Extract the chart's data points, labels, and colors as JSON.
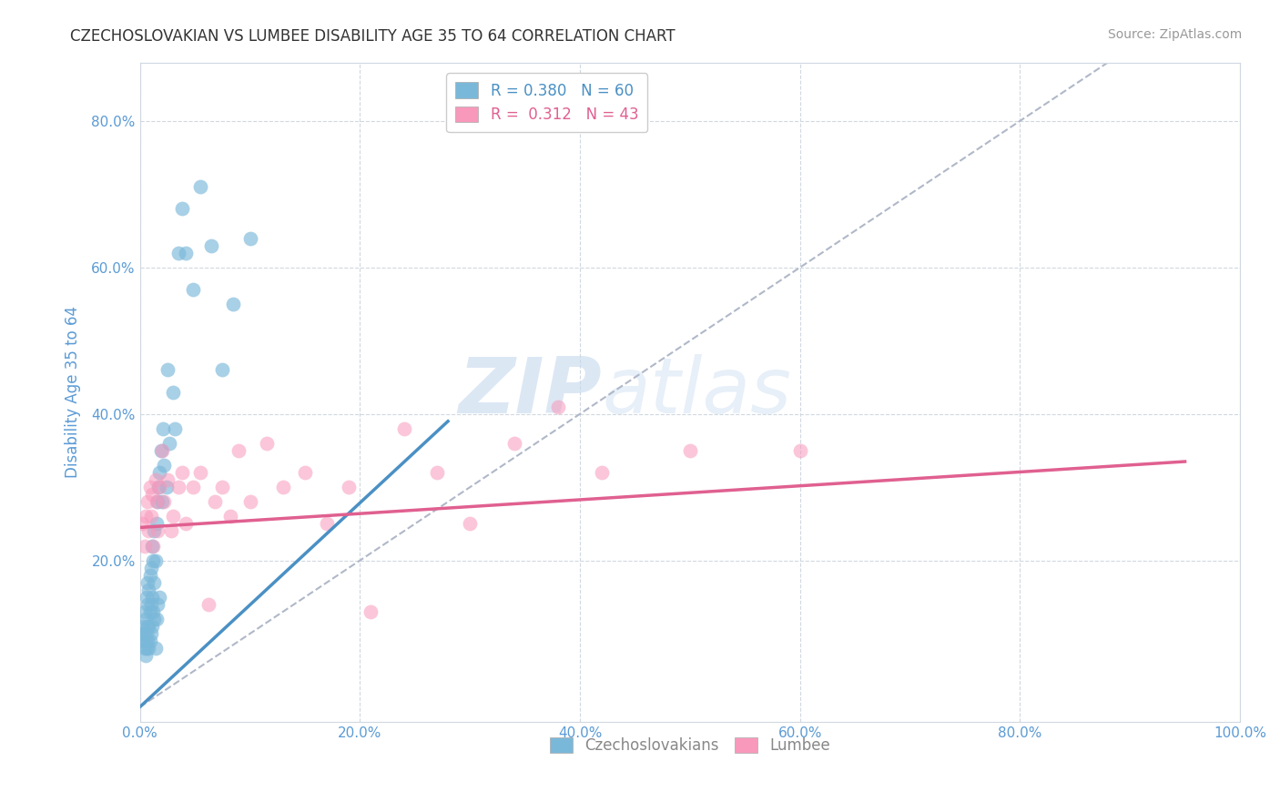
{
  "title": "CZECHOSLOVAKIAN VS LUMBEE DISABILITY AGE 35 TO 64 CORRELATION CHART",
  "source": "Source: ZipAtlas.com",
  "ylabel": "Disability Age 35 to 64",
  "xlabel": "",
  "xlim": [
    0.0,
    1.0
  ],
  "ylim": [
    -0.02,
    0.88
  ],
  "xticks": [
    0.0,
    0.2,
    0.4,
    0.6,
    0.8,
    1.0
  ],
  "yticks": [
    0.2,
    0.4,
    0.6,
    0.8
  ],
  "xtick_labels": [
    "0.0%",
    "20.0%",
    "40.0%",
    "60.0%",
    "80.0%",
    "100.0%"
  ],
  "ytick_labels": [
    "20.0%",
    "40.0%",
    "60.0%",
    "80.0%"
  ],
  "blue_R": 0.38,
  "blue_N": 60,
  "pink_R": 0.312,
  "pink_N": 43,
  "blue_color": "#7ab8d9",
  "pink_color": "#f898bb",
  "blue_line_color": "#4a90c4",
  "pink_line_color": "#e06090",
  "background_color": "#ffffff",
  "grid_color": "#d0d8e0",
  "title_color": "#333333",
  "axis_label_color": "#5b9bd5",
  "watermark_zip": "ZIP",
  "watermark_atlas": "atlas",
  "blue_scatter_x": [
    0.002,
    0.003,
    0.003,
    0.004,
    0.004,
    0.004,
    0.005,
    0.005,
    0.005,
    0.006,
    0.006,
    0.006,
    0.007,
    0.007,
    0.007,
    0.007,
    0.008,
    0.008,
    0.008,
    0.009,
    0.009,
    0.009,
    0.01,
    0.01,
    0.01,
    0.011,
    0.011,
    0.011,
    0.012,
    0.012,
    0.013,
    0.013,
    0.013,
    0.014,
    0.014,
    0.015,
    0.015,
    0.016,
    0.016,
    0.017,
    0.018,
    0.018,
    0.019,
    0.02,
    0.021,
    0.022,
    0.024,
    0.025,
    0.027,
    0.03,
    0.032,
    0.035,
    0.038,
    0.042,
    0.048,
    0.055,
    0.065,
    0.075,
    0.085,
    0.1
  ],
  "blue_scatter_y": [
    0.1,
    0.09,
    0.11,
    0.08,
    0.1,
    0.13,
    0.07,
    0.09,
    0.12,
    0.08,
    0.1,
    0.15,
    0.09,
    0.11,
    0.14,
    0.17,
    0.08,
    0.11,
    0.16,
    0.09,
    0.13,
    0.18,
    0.1,
    0.14,
    0.19,
    0.11,
    0.15,
    0.22,
    0.13,
    0.2,
    0.12,
    0.17,
    0.24,
    0.08,
    0.2,
    0.12,
    0.25,
    0.14,
    0.28,
    0.3,
    0.15,
    0.32,
    0.35,
    0.28,
    0.38,
    0.33,
    0.3,
    0.46,
    0.36,
    0.43,
    0.38,
    0.62,
    0.68,
    0.62,
    0.57,
    0.71,
    0.63,
    0.46,
    0.55,
    0.64
  ],
  "pink_scatter_x": [
    0.002,
    0.004,
    0.005,
    0.007,
    0.008,
    0.009,
    0.01,
    0.011,
    0.012,
    0.014,
    0.015,
    0.016,
    0.018,
    0.02,
    0.022,
    0.025,
    0.028,
    0.03,
    0.035,
    0.038,
    0.042,
    0.048,
    0.055,
    0.062,
    0.068,
    0.075,
    0.082,
    0.09,
    0.1,
    0.115,
    0.13,
    0.15,
    0.17,
    0.19,
    0.21,
    0.24,
    0.27,
    0.3,
    0.34,
    0.38,
    0.42,
    0.5,
    0.6
  ],
  "pink_scatter_y": [
    0.25,
    0.22,
    0.26,
    0.28,
    0.24,
    0.3,
    0.26,
    0.29,
    0.22,
    0.31,
    0.28,
    0.24,
    0.3,
    0.35,
    0.28,
    0.31,
    0.24,
    0.26,
    0.3,
    0.32,
    0.25,
    0.3,
    0.32,
    0.14,
    0.28,
    0.3,
    0.26,
    0.35,
    0.28,
    0.36,
    0.3,
    0.32,
    0.25,
    0.3,
    0.13,
    0.38,
    0.32,
    0.25,
    0.36,
    0.41,
    0.32,
    0.35,
    0.35
  ],
  "blue_trend_x": [
    0.0,
    0.28
  ],
  "blue_trend_y": [
    0.0,
    0.39
  ],
  "pink_trend_x": [
    0.0,
    0.95
  ],
  "pink_trend_y": [
    0.245,
    0.335
  ]
}
